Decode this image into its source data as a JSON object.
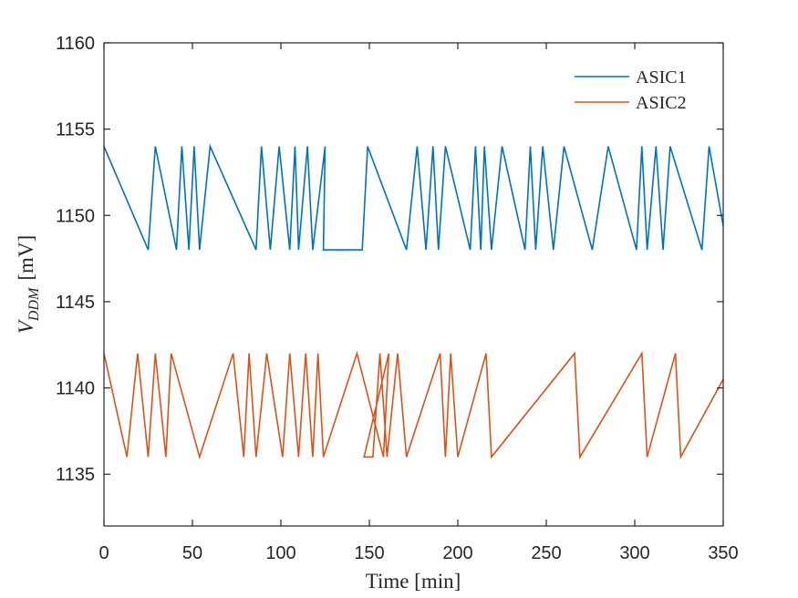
{
  "chart_data": {
    "type": "line",
    "xlabel": "Time [min]",
    "ylabel_main": "V",
    "ylabel_sub": "DDM",
    "ylabel_unit": "[mV]",
    "xlim": [
      0,
      350
    ],
    "ylim": [
      1132,
      1160
    ],
    "xticks": [
      0,
      50,
      100,
      150,
      200,
      250,
      300,
      350
    ],
    "yticks": [
      1135,
      1140,
      1145,
      1150,
      1155,
      1160
    ],
    "grid": false,
    "legend_position": "top-right",
    "series": [
      {
        "name": "ASIC1",
        "color": "#0072BD",
        "points": [
          [
            0,
            1154
          ],
          [
            25,
            1148
          ],
          [
            29,
            1154
          ],
          [
            41,
            1148
          ],
          [
            44,
            1154
          ],
          [
            48,
            1148
          ],
          [
            51,
            1154
          ],
          [
            54,
            1148
          ],
          [
            60,
            1154
          ],
          [
            86,
            1148
          ],
          [
            89,
            1154
          ],
          [
            94,
            1148
          ],
          [
            99,
            1154
          ],
          [
            105,
            1148
          ],
          [
            108,
            1154
          ],
          [
            110,
            1148
          ],
          [
            115,
            1154
          ],
          [
            118,
            1148
          ],
          [
            125,
            1154
          ],
          [
            124,
            1148
          ],
          [
            146,
            1148
          ],
          [
            149,
            1154
          ],
          [
            171,
            1148
          ],
          [
            177,
            1154
          ],
          [
            182,
            1148
          ],
          [
            186,
            1154
          ],
          [
            189,
            1148
          ],
          [
            193,
            1154
          ],
          [
            207,
            1148
          ],
          [
            210,
            1154
          ],
          [
            213,
            1148
          ],
          [
            215,
            1154
          ],
          [
            219,
            1148
          ],
          [
            225,
            1154
          ],
          [
            238,
            1148
          ],
          [
            241,
            1154
          ],
          [
            244,
            1148
          ],
          [
            248,
            1154
          ],
          [
            254,
            1148
          ],
          [
            260,
            1154
          ],
          [
            276,
            1148
          ],
          [
            285,
            1154
          ],
          [
            301,
            1148
          ],
          [
            304,
            1154
          ],
          [
            307,
            1148
          ],
          [
            312,
            1154
          ],
          [
            316,
            1148
          ],
          [
            320,
            1154
          ],
          [
            338,
            1148
          ],
          [
            342,
            1154
          ],
          [
            350,
            1149.4
          ]
        ]
      },
      {
        "name": "ASIC2",
        "color": "#D95319",
        "points": [
          [
            0,
            1142
          ],
          [
            13,
            1136
          ],
          [
            19,
            1142
          ],
          [
            25,
            1136
          ],
          [
            29,
            1142
          ],
          [
            35,
            1136
          ],
          [
            38,
            1142
          ],
          [
            54,
            1136
          ],
          [
            73,
            1142
          ],
          [
            79,
            1136
          ],
          [
            82,
            1142
          ],
          [
            86,
            1136
          ],
          [
            92,
            1142
          ],
          [
            101,
            1136
          ],
          [
            105,
            1142
          ],
          [
            110,
            1136
          ],
          [
            114,
            1142
          ],
          [
            118,
            1136
          ],
          [
            121,
            1142
          ],
          [
            124,
            1136
          ],
          [
            143,
            1142
          ],
          [
            158,
            1136
          ],
          [
            161,
            1142
          ],
          [
            147,
            1136
          ],
          [
            152,
            1136
          ],
          [
            156,
            1142
          ],
          [
            160,
            1136
          ],
          [
            166,
            1142
          ],
          [
            171,
            1136
          ],
          [
            190,
            1142
          ],
          [
            193,
            1136
          ],
          [
            196,
            1142
          ],
          [
            200,
            1136
          ],
          [
            216,
            1142
          ],
          [
            219,
            1136
          ],
          [
            266,
            1142
          ],
          [
            269,
            1136
          ],
          [
            304,
            1142
          ],
          [
            307,
            1136
          ],
          [
            323,
            1142
          ],
          [
            326,
            1136
          ],
          [
            350,
            1140.5
          ]
        ]
      }
    ]
  }
}
